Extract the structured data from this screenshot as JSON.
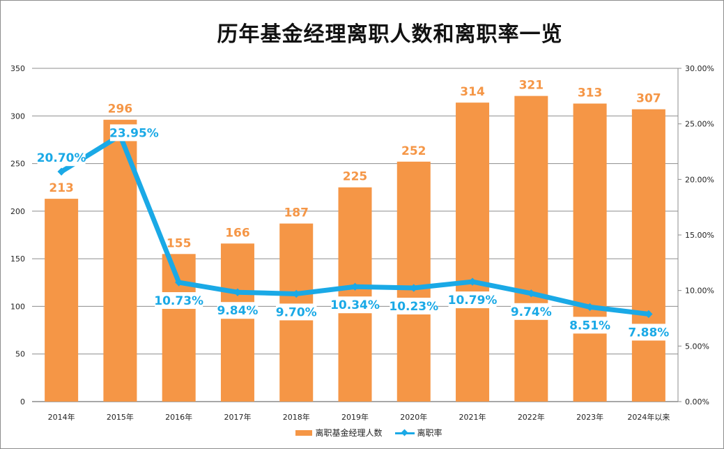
{
  "chart_data": {
    "type": "bar",
    "title": "历年基金经理离职人数和离职率一览",
    "categories": [
      "2014年",
      "2015年",
      "2016年",
      "2017年",
      "2018年",
      "2019年",
      "2020年",
      "2021年",
      "2022年",
      "2023年",
      "2024年以来"
    ],
    "series": [
      {
        "name": "离职基金经理人数",
        "type": "bar",
        "axis": "left",
        "color": "#f59646",
        "values": [
          213,
          296,
          155,
          166,
          187,
          225,
          252,
          314,
          321,
          313,
          307
        ],
        "labels": [
          "213",
          "296",
          "155",
          "166",
          "187",
          "225",
          "252",
          "314",
          "321",
          "313",
          "307"
        ]
      },
      {
        "name": "离职率",
        "type": "line",
        "axis": "right",
        "color": "#1aa9e6",
        "values": [
          20.7,
          23.95,
          10.73,
          9.84,
          9.7,
          10.34,
          10.23,
          10.79,
          9.74,
          8.51,
          7.88
        ],
        "labels": [
          "20.70%",
          "23.95%",
          "10.73%",
          "9.84%",
          "9.70%",
          "10.34%",
          "10.23%",
          "10.79%",
          "9.74%",
          "8.51%",
          "7.88%"
        ]
      }
    ],
    "y_left": {
      "range": [
        0,
        350
      ],
      "ticks": [
        0,
        50,
        100,
        150,
        200,
        250,
        300,
        350
      ],
      "tick_labels": [
        "0",
        "50",
        "100",
        "150",
        "200",
        "250",
        "300",
        "350"
      ]
    },
    "y_right": {
      "range": [
        0,
        30
      ],
      "ticks": [
        0,
        5,
        10,
        15,
        20,
        25,
        30
      ],
      "tick_labels": [
        "0.00%",
        "5.00%",
        "10.00%",
        "15.00%",
        "20.00%",
        "25.00%",
        "30.00%"
      ]
    },
    "xlabel": "",
    "ylabel": "",
    "grid": true,
    "legend": {
      "position": "bottom",
      "entries": [
        "离职基金经理人数",
        "离职率"
      ]
    }
  }
}
